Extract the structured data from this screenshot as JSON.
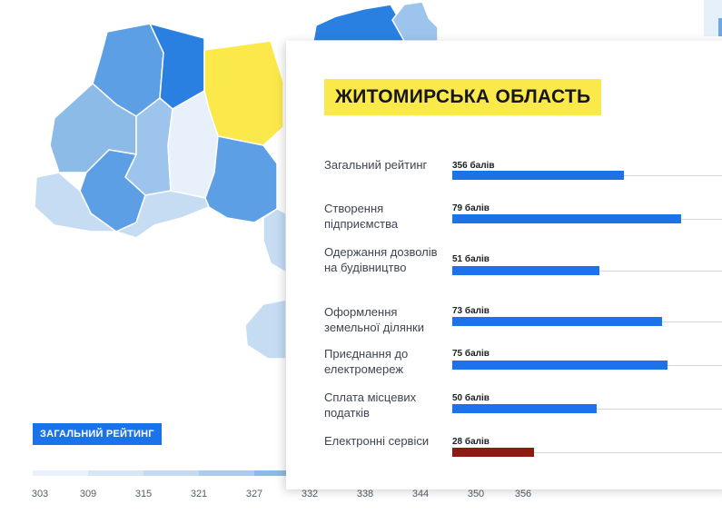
{
  "region_title": "ЖИТОМИРСЬКА ОБЛАСТЬ",
  "metrics": [
    {
      "label": "Загальний рейтинг",
      "score_text": "356 балів",
      "score": 356,
      "fill_fraction": 0.63,
      "color": "#1a73e8"
    },
    {
      "label": "Створення підприємства",
      "score_text": "79 балів",
      "score": 79,
      "fill_fraction": 0.84,
      "color": "#1a73e8"
    },
    {
      "label": "Одержання дозволів на будівництво",
      "score_text": "51 балів",
      "score": 51,
      "fill_fraction": 0.54,
      "color": "#1a73e8"
    },
    {
      "label": "Оформлення земельної ділянки",
      "score_text": "73 балів",
      "score": 73,
      "fill_fraction": 0.77,
      "color": "#1a73e8"
    },
    {
      "label": "Приєднання до електромереж",
      "score_text": "75 балів",
      "score": 75,
      "fill_fraction": 0.79,
      "color": "#1a73e8"
    },
    {
      "label": "Сплата місцевих податків",
      "score_text": "50 балів",
      "score": 50,
      "fill_fraction": 0.53,
      "color": "#1a73e8"
    },
    {
      "label": "Електронні сервіси",
      "score_text": "28 балів",
      "score": 28,
      "fill_fraction": 0.3,
      "color": "#8e1a12"
    }
  ],
  "legend": {
    "title": "ЗАГАЛЬНИЙ РЕЙТИНГ",
    "ticks": [
      "303",
      "309",
      "315",
      "321",
      "327",
      "332",
      "338",
      "344",
      "350",
      "356"
    ],
    "colors": [
      "#e8f1fb",
      "#d6e6f6",
      "#c2daf2",
      "#a9cbee",
      "#8cbbe8"
    ]
  },
  "map_colors": {
    "highlight": "#fbe94b",
    "dark": "#2a80e0",
    "mid": "#5c9fe4",
    "light": "#9dc4ec",
    "pale": "#c5dcf3",
    "palest": "#e8f1fb"
  }
}
